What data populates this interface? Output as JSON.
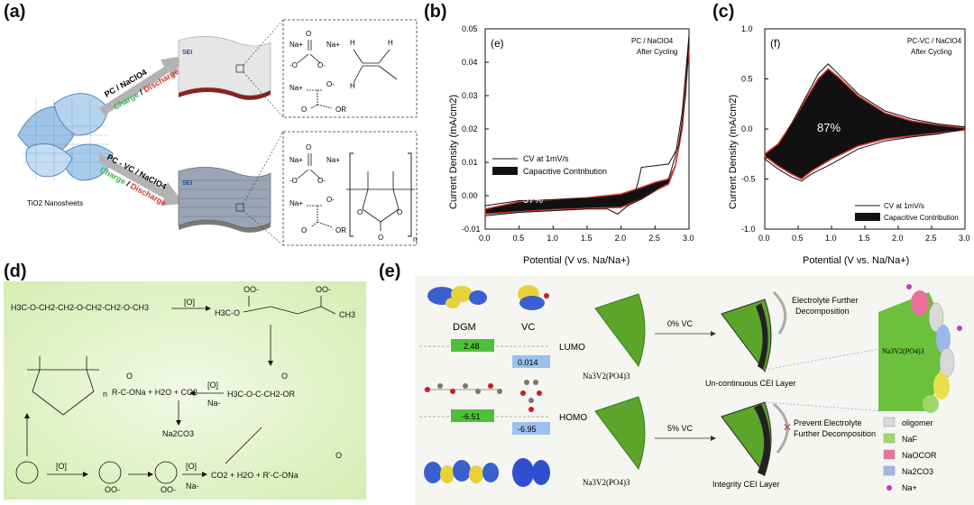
{
  "panels": {
    "a": {
      "label": "(a)",
      "material": "TiO2 Nanosheets",
      "upper_route": {
        "electrolyte": "PC / NaClO4",
        "charge": "Charge",
        "slash": " / ",
        "discharge": "Discharge",
        "sei": "SEI"
      },
      "lower_route": {
        "electrolyte": "PC - VC / NaClO4",
        "charge": "Charge",
        "slash": " / ",
        "discharge": "Discharge",
        "sei": "SEI"
      },
      "upper_species": {
        "na_a": "Na+",
        "na_b": "Na+",
        "o_dbl": "O",
        "o_left": "-O",
        "o_right": "O-",
        "na_c": "Na+",
        "o_c": "O-",
        "o_d": "O",
        "or": "OR",
        "h1": "H",
        "h2": "H",
        "h3": "H"
      },
      "lower_species": {
        "na_a": "Na+",
        "na_b": "Na+",
        "o_dbl": "O",
        "o_left": "-O",
        "o_right": "O-",
        "na_c": "Na+",
        "o_c": "O-",
        "o_d": "O",
        "or": "OR",
        "n": "n",
        "o1": "O",
        "o2": "O",
        "o3": "O"
      }
    },
    "b": {
      "label": "(b)",
      "inset": "(e)",
      "electrolyte": "PC / NaClO4",
      "state": "After Cycling",
      "percent": "37%"
    },
    "c": {
      "label": "(c)",
      "inset": "(f)",
      "electrolyte": "PC-VC / NaClO4",
      "state": "After Cycling",
      "percent": "87%"
    },
    "d": {
      "label": "(d)",
      "dgm": "H3C-O-CH2-CH2-O-CH2-CH2-O-CH3",
      "ox1": "[O]",
      "oo1": "OO-",
      "oo2": "OO-",
      "h3c_o": "H3C-O",
      "ch3_end": "CH3",
      "sodium_carboxylate": "R-C-ONa + H2O + CO2",
      "o_top": "O",
      "ox2": "[O]",
      "na_minus": "Na-",
      "ester": "H3C-O-C-CH2-OR",
      "ester_o": "O",
      "na2co3": "Na2CO3",
      "poly_n": "n",
      "ox3": "[O]",
      "ox4": "[O]",
      "na_minus2": "Na-",
      "oo3": "OO-",
      "oo4": "OO-",
      "final_products": "CO2  +  H2O  +  R'-C-ONa",
      "final_o": "O"
    },
    "e": {
      "label": "(e)",
      "dgm": "DGM",
      "vc": "VC",
      "lumo": "LUMO",
      "homo": "HOMO",
      "dgm_lumo": "2.48",
      "vc_lumo": "0.014",
      "dgm_homo": "-6.51",
      "vc_homo": "-6.95",
      "nvp_top": "Na3V2(PO4)3",
      "nvp_bottom": "Na3V2(PO4)3",
      "vc_0": "0% VC",
      "vc_5": "5% VC",
      "top_result": "Un-continuous CEI Layer",
      "bottom_result": "Integrity CEI Layer",
      "further_1": "Electrolyte Further",
      "further_2": "Decomposition",
      "prevent_1": "Prevent Electrolyte",
      "prevent_2": "Further Decomposition",
      "nvp_zoom": "Na3V2(PO4)3",
      "legend": [
        {
          "label": "oligomer",
          "color": "#d9d9d9"
        },
        {
          "label": "NaF",
          "color": "#9fd86a"
        },
        {
          "label": "NaOCOR",
          "color": "#e8739a"
        },
        {
          "label": "Na2CO3",
          "color": "#9cb8e8"
        },
        {
          "label": "Na+",
          "color": "#c13fc1"
        }
      ]
    }
  },
  "chart_data": [
    {
      "type": "line",
      "title": "",
      "xlabel": "Potential (V vs. Na/Na+)",
      "ylabel": "Current Density (mA/cm2)",
      "xlim": [
        0.0,
        3.0
      ],
      "ylim": [
        -0.01,
        0.05
      ],
      "xticks": [
        "0.0",
        "0.5",
        "1.0",
        "1.5",
        "2.0",
        "2.5",
        "3.0"
      ],
      "yticks": [
        "-0.01",
        "0.00",
        "0.01",
        "0.02",
        "0.03",
        "0.04",
        "0.05"
      ],
      "legend": [
        "CV at 1mV/s",
        "Capacitive Contribution"
      ],
      "series": [
        {
          "name": "CV at 1mV/s upper",
          "x": [
            0.0,
            0.5,
            1.0,
            1.5,
            2.0,
            2.2,
            2.25,
            2.3,
            2.5,
            2.7,
            2.85,
            2.95,
            3.0
          ],
          "y": [
            -0.003,
            -0.0015,
            -0.0012,
            -0.0008,
            0.0,
            0.0005,
            0.004,
            0.0085,
            0.009,
            0.0095,
            0.015,
            0.03,
            0.048
          ]
        },
        {
          "name": "CV at 1mV/s lower",
          "x": [
            3.0,
            2.9,
            2.8,
            2.7,
            2.5,
            2.3,
            2.1,
            1.95,
            1.8,
            1.5,
            1.0,
            0.5,
            0.0
          ],
          "y": [
            0.048,
            0.025,
            0.012,
            0.005,
            0.0015,
            -0.001,
            -0.003,
            -0.0055,
            -0.004,
            -0.004,
            -0.0045,
            -0.005,
            -0.006
          ]
        },
        {
          "name": "Capacitive Contribution upper",
          "x": [
            0.0,
            0.5,
            1.0,
            1.5,
            2.0,
            2.3,
            2.5,
            2.7,
            2.8,
            2.9,
            3.0
          ],
          "y": [
            -0.004,
            -0.0018,
            -0.0012,
            -0.0006,
            0.0005,
            0.0025,
            0.004,
            0.005,
            0.009,
            0.02,
            0.044
          ]
        },
        {
          "name": "Capacitive Contribution lower",
          "x": [
            3.0,
            2.9,
            2.8,
            2.7,
            2.5,
            2.3,
            2.0,
            1.5,
            1.0,
            0.5,
            0.0
          ],
          "y": [
            0.044,
            0.022,
            0.009,
            0.0035,
            0.0015,
            -0.001,
            -0.0035,
            -0.0038,
            -0.0042,
            -0.0048,
            -0.0055
          ]
        }
      ]
    },
    {
      "type": "line",
      "title": "",
      "xlabel": "Potential (V vs. Na/Na+)",
      "ylabel": "Current Density (mA/cm2)",
      "xlim": [
        0.0,
        3.0
      ],
      "ylim": [
        -1.0,
        1.0
      ],
      "xticks": [
        "0.0",
        "0.5",
        "1.0",
        "1.5",
        "2.0",
        "2.5",
        "3.0"
      ],
      "yticks": [
        "-1.0",
        "-0.5",
        "0.0",
        "0.5",
        "1.0"
      ],
      "legend": [
        "CV at 1mV/s",
        "Capacitive Contribution"
      ],
      "series": [
        {
          "name": "CV at 1mV/s upper",
          "x": [
            0.0,
            0.2,
            0.4,
            0.6,
            0.8,
            0.95,
            1.1,
            1.4,
            1.8,
            2.2,
            2.6,
            3.0
          ],
          "y": [
            -0.3,
            -0.2,
            0.05,
            0.3,
            0.55,
            0.65,
            0.55,
            0.35,
            0.18,
            0.1,
            0.05,
            0.02
          ]
        },
        {
          "name": "CV at 1mV/s lower",
          "x": [
            3.0,
            2.6,
            2.2,
            1.8,
            1.4,
            1.0,
            0.7,
            0.55,
            0.4,
            0.2,
            0.0
          ],
          "y": [
            0.0,
            -0.05,
            -0.08,
            -0.12,
            -0.2,
            -0.35,
            -0.45,
            -0.52,
            -0.48,
            -0.4,
            -0.3
          ]
        },
        {
          "name": "Capacitive Contribution upper",
          "x": [
            0.0,
            0.2,
            0.4,
            0.6,
            0.8,
            0.95,
            1.1,
            1.4,
            1.8,
            2.2,
            2.6,
            3.0
          ],
          "y": [
            -0.25,
            -0.15,
            0.05,
            0.28,
            0.5,
            0.6,
            0.52,
            0.33,
            0.16,
            0.08,
            0.04,
            0.01
          ]
        },
        {
          "name": "Capacitive Contribution lower",
          "x": [
            3.0,
            2.6,
            2.2,
            1.8,
            1.4,
            1.0,
            0.7,
            0.55,
            0.4,
            0.2,
            0.0
          ],
          "y": [
            -0.01,
            -0.04,
            -0.07,
            -0.1,
            -0.17,
            -0.3,
            -0.42,
            -0.5,
            -0.45,
            -0.37,
            -0.27
          ]
        }
      ]
    }
  ]
}
